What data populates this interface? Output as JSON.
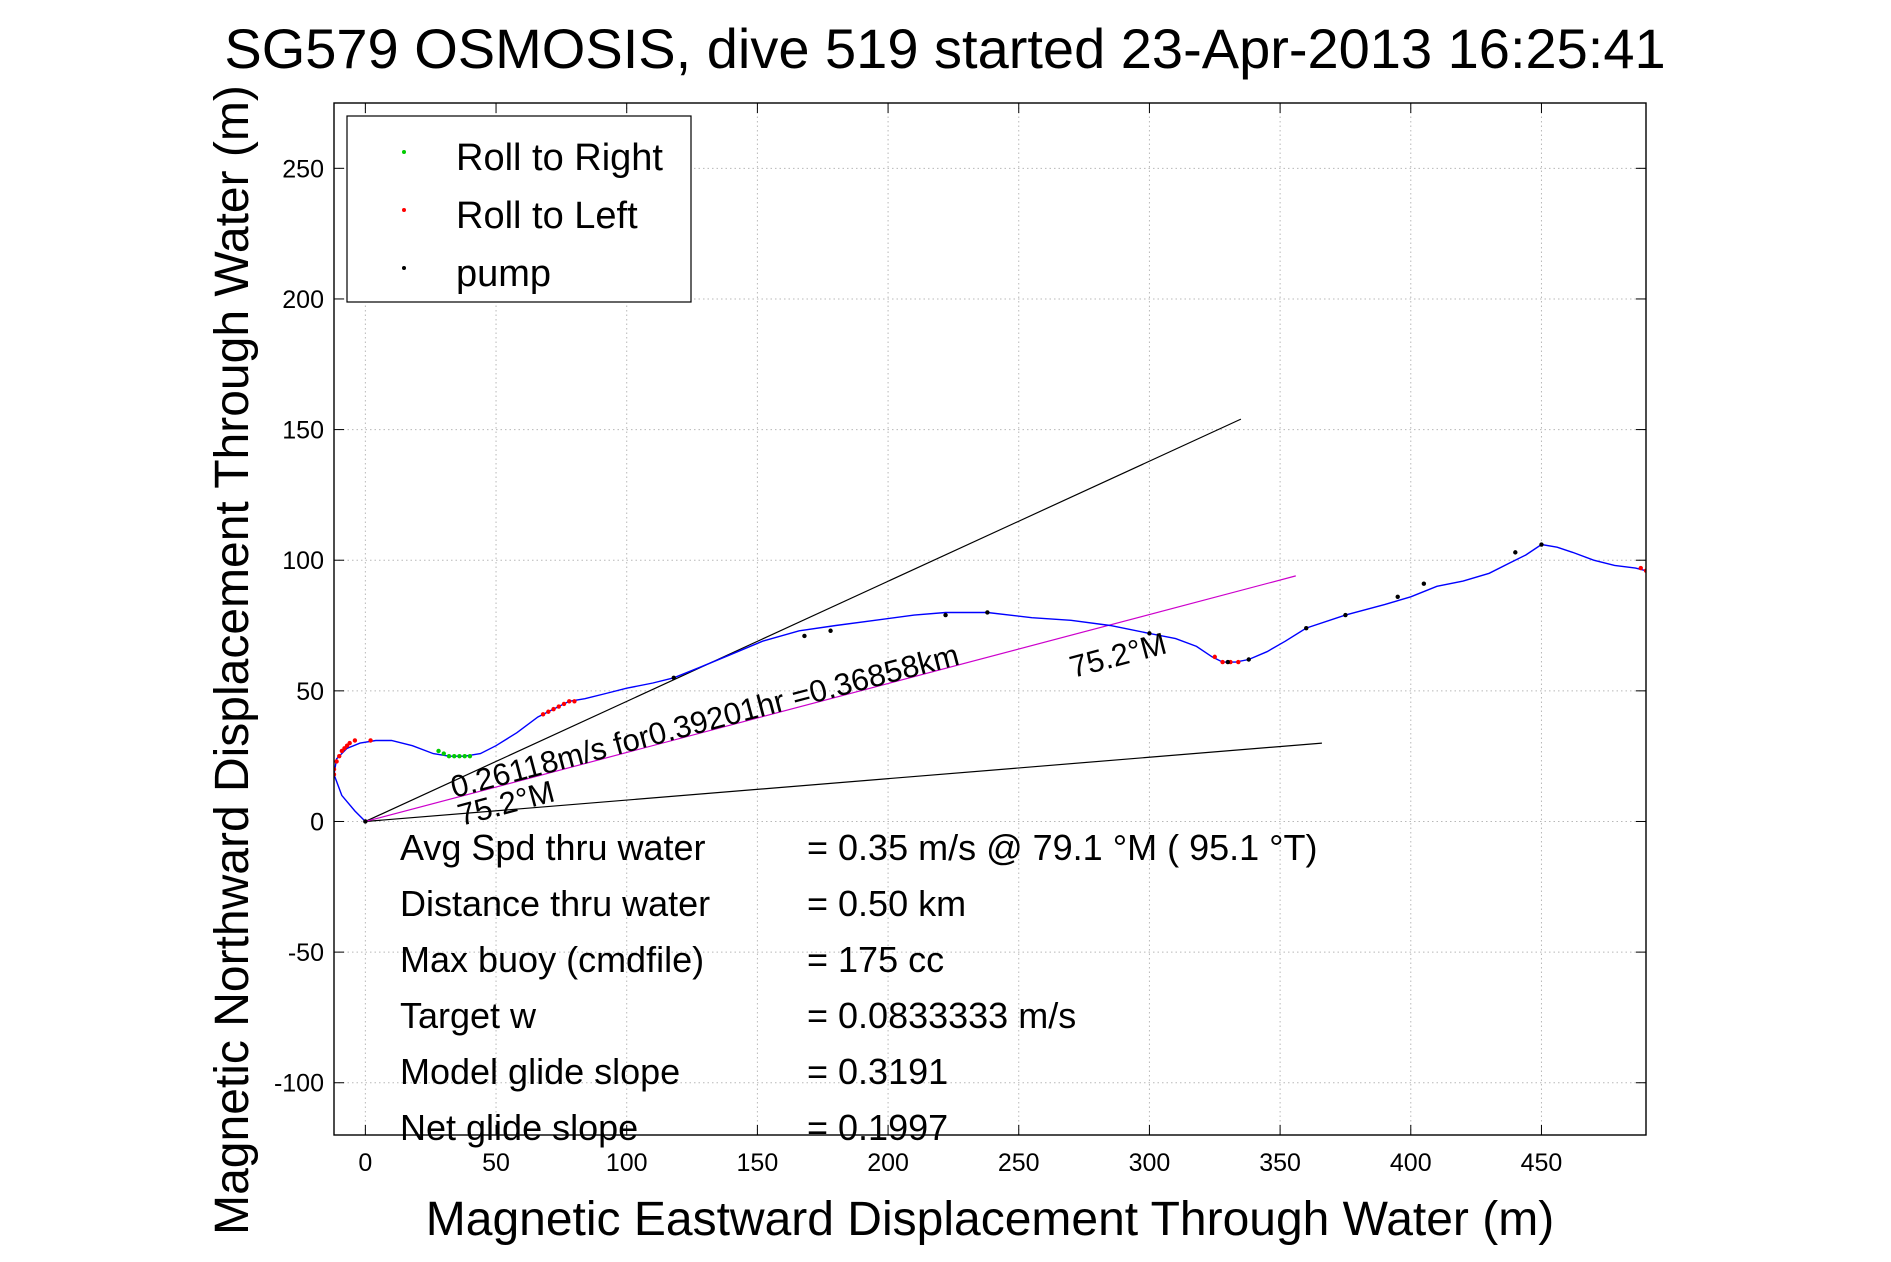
{
  "chart_data": {
    "type": "line",
    "title": "SG579 OSMOSIS, dive 519 started 23-Apr-2013 16:25:41",
    "xlabel": "Magnetic Eastward Displacement Through Water (m)",
    "ylabel": "Magnetic Northward Displacement Through Water (m)",
    "xlim": [
      -12,
      490
    ],
    "ylim": [
      -120,
      275
    ],
    "xticks": [
      0,
      50,
      100,
      150,
      200,
      250,
      300,
      350,
      400,
      450
    ],
    "yticks": [
      -100,
      -50,
      0,
      50,
      100,
      150,
      200,
      250
    ],
    "grid": true,
    "legend": {
      "placement": "top-left",
      "entries": [
        {
          "label": "Roll to Right",
          "color": "#00cc00"
        },
        {
          "label": "Roll to Left",
          "color": "#ff0000"
        },
        {
          "label": "pump",
          "color": "#000000"
        }
      ]
    },
    "series": [
      {
        "role": "track",
        "color": "#0000ff",
        "x": [
          0,
          -4,
          -9,
          -12,
          -11,
          -7,
          -2,
          4,
          10,
          18,
          26,
          32,
          38,
          44,
          50,
          58,
          66,
          72,
          78,
          84,
          92,
          100,
          110,
          118,
          128,
          140,
          152,
          166,
          180,
          195,
          210,
          222,
          238,
          255,
          270,
          285,
          300,
          310,
          318,
          324,
          328,
          333,
          338,
          345,
          352,
          360,
          375,
          390,
          400,
          410,
          420,
          430,
          438,
          444,
          450,
          456,
          462,
          470,
          478,
          486,
          490
        ],
        "y": [
          0,
          4,
          10,
          18,
          24,
          28,
          30,
          31,
          31,
          29,
          26,
          25,
          25,
          26,
          29,
          34,
          40,
          43,
          46,
          47,
          49,
          51,
          53,
          55,
          59,
          64,
          69,
          73,
          75,
          77,
          79,
          80,
          80,
          78,
          77,
          75,
          72,
          70,
          67,
          63,
          61,
          61,
          62,
          65,
          69,
          74,
          79,
          83,
          86,
          90,
          92,
          95,
          99,
          102,
          106,
          105,
          103,
          100,
          98,
          97,
          96
        ]
      },
      {
        "role": "roll-right-points",
        "color": "#00cc00",
        "x": [
          28,
          30,
          32,
          34,
          36,
          38,
          40
        ],
        "y": [
          27,
          26,
          25,
          25,
          25,
          25,
          25
        ]
      },
      {
        "role": "roll-left-points",
        "color": "#ff0000",
        "x": [
          -12,
          -12,
          -11,
          -10,
          -9,
          -8,
          -7,
          -6,
          -4,
          2,
          68,
          70,
          72,
          74,
          76,
          78,
          80,
          325,
          328,
          331,
          334,
          488,
          490
        ],
        "y": [
          18,
          20,
          23,
          25,
          27,
          28,
          29,
          30,
          31,
          31,
          41,
          42,
          43,
          44,
          45,
          46,
          46,
          63,
          61,
          61,
          61,
          97,
          96
        ]
      },
      {
        "role": "pump-points",
        "color": "#000000",
        "x": [
          0,
          118,
          168,
          178,
          222,
          238,
          300,
          330,
          338,
          360,
          375,
          395,
          405,
          440,
          450
        ],
        "y": [
          0,
          55,
          71,
          73,
          79,
          80,
          72,
          61,
          62,
          74,
          79,
          86,
          91,
          103,
          106
        ]
      }
    ],
    "reference_lines": [
      {
        "role": "sector-upper",
        "color": "#000000",
        "x": [
          0,
          335
        ],
        "y": [
          0,
          154
        ]
      },
      {
        "role": "sector-lower",
        "color": "#000000",
        "x": [
          0,
          366
        ],
        "y": [
          0,
          30
        ]
      },
      {
        "role": "course",
        "color": "#cc00cc",
        "x": [
          0,
          356
        ],
        "y": [
          0,
          94
        ]
      }
    ],
    "annotations": {
      "speed_line": "0.26118m/s for0.39201hr =0.36858km",
      "heading_near_end": "75.2°M",
      "heading_near_origin": "75.2°M"
    },
    "stats": [
      {
        "label": "Avg Spd thru water",
        "value": "=  0.35 m/s @  79.1 °M ( 95.1 °T)"
      },
      {
        "label": "Distance thru water",
        "value": "=  0.50 km"
      },
      {
        "label": "Max buoy (cmdfile)",
        "value": "= 175 cc"
      },
      {
        "label": "Target w",
        "value": "= 0.0833333 m/s"
      },
      {
        "label": "Model glide slope",
        "value": "= 0.3191"
      },
      {
        "label": "Net glide slope",
        "value": "= 0.1997"
      }
    ]
  }
}
